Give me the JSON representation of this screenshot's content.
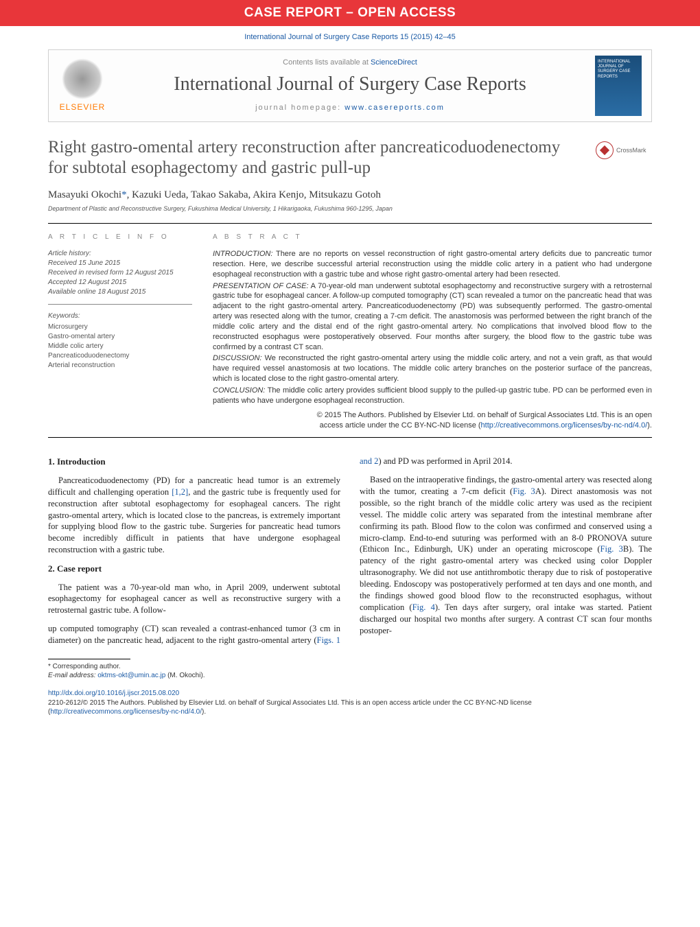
{
  "banner": {
    "text": "CASE REPORT – OPEN ACCESS",
    "bg": "#e8363a",
    "fg": "#ffffff",
    "fontsize": 19
  },
  "citation": "International Journal of Surgery Case Reports 15 (2015) 42–45",
  "contents": {
    "line_prefix": "Contents lists available at ",
    "line_link": "ScienceDirect",
    "journal_title": "International Journal of Surgery Case Reports",
    "homepage_prefix": "journal homepage: ",
    "homepage_link": "www.casereports.com",
    "elsevier_label": "ELSEVIER",
    "cover_lines": "INTERNATIONAL JOURNAL OF SURGERY CASE REPORTS"
  },
  "article": {
    "title": "Right gastro-omental artery reconstruction after pancreaticoduodenectomy for subtotal esophagectomy and gastric pull-up",
    "title_fontsize": 25,
    "title_color": "#585858",
    "crossmark": "CrossMark"
  },
  "authors": {
    "list": "Masayuki Okochi",
    "rest": ", Kazuki Ueda, Takao Sakaba, Akira Kenjo, Mitsukazu Gotoh",
    "corr_mark": "*"
  },
  "affiliation": "Department of Plastic and Reconstructive Surgery, Fukushima Medical University, 1 Hikarigaoka, Fukushima 960-1295, Japan",
  "info": {
    "label": "a r t i c l e   i n f o",
    "history_hd": "Article history:",
    "received": "Received 15 June 2015",
    "revised": "Received in revised form 12 August 2015",
    "accepted": "Accepted 12 August 2015",
    "online": "Available online 18 August 2015",
    "keywords_hd": "Keywords:",
    "keywords": [
      "Microsurgery",
      "Gastro-omental artery",
      "Middle colic artery",
      "Pancreaticoduodenectomy",
      "Arterial reconstruction"
    ]
  },
  "abstract": {
    "label": "a b s t r a c t",
    "intro_hd": "INTRODUCTION:",
    "intro": " There are no reports on vessel reconstruction of right gastro-omental artery deficits due to pancreatic tumor resection. Here, we describe successful arterial reconstruction using the middle colic artery in a patient who had undergone esophageal reconstruction with a gastric tube and whose right gastro-omental artery had been resected.",
    "case_hd": "PRESENTATION OF CASE:",
    "case": " A 70-year-old man underwent subtotal esophagectomy and reconstructive surgery with a retrosternal gastric tube for esophageal cancer. A follow-up computed tomography (CT) scan revealed a tumor on the pancreatic head that was adjacent to the right gastro-omental artery. Pancreaticoduodenectomy (PD) was subsequently performed. The gastro-omental artery was resected along with the tumor, creating a 7-cm deficit. The anastomosis was performed between the right branch of the middle colic artery and the distal end of the right gastro-omental artery. No complications that involved blood flow to the reconstructed esophagus were postoperatively observed. Four months after surgery, the blood flow to the gastric tube was confirmed by a contrast CT scan.",
    "disc_hd": "DISCUSSION:",
    "disc": " We reconstructed the right gastro-omental artery using the middle colic artery, and not a vein graft, as that would have required vessel anastomosis at two locations. The middle colic artery branches on the posterior surface of the pancreas, which is located close to the right gastro-omental artery.",
    "conc_hd": "CONCLUSION:",
    "conc": " The middle colic artery provides sufficient blood supply to the pulled-up gastric tube. PD can be performed even in patients who have undergone esophageal reconstruction.",
    "copyright_line1": "© 2015 The Authors. Published by Elsevier Ltd. on behalf of Surgical Associates Ltd. This is an open",
    "copyright_line2": "access article under the CC BY-NC-ND license (",
    "copyright_link": "http://creativecommons.org/licenses/by-nc-nd/4.0/",
    "copyright_close": ")."
  },
  "body": {
    "h1": "1.  Introduction",
    "p1a": "Pancreaticoduodenectomy (PD) for a pancreatic head tumor is an extremely difficult and challenging operation ",
    "p1_link": "[1,2]",
    "p1b": ", and the gastric tube is frequently used for reconstruction after subtotal esophagectomy for esophageal cancers. The right gastro-omental artery, which is located close to the pancreas, is extremely important for supplying blood flow to the gastric tube. Surgeries for pancreatic head tumors become incredibly difficult in patients that have undergone esophageal reconstruction with a gastric tube.",
    "h2": "2.  Case report",
    "p2": "The patient was a 70-year-old man who, in April 2009, underwent subtotal esophagectomy for esophageal cancer as well as reconstructive surgery with a retrosternal gastric tube. A follow-",
    "p3a": "up computed tomography (CT) scan revealed a contrast-enhanced tumor (3 cm in diameter) on the pancreatic head, adjacent to the right gastro-omental artery (",
    "p3_link1": "Figs. 1 and 2",
    "p3b": ") and PD was performed in April 2014.",
    "p4a": "Based on the intraoperative findings, the gastro-omental artery was resected along with the tumor, creating a 7-cm deficit (",
    "p4_link1": "Fig. 3",
    "p4b": "A). Direct anastomosis was not possible, so the right branch of the middle colic artery was used as the recipient vessel. The middle colic artery was separated from the intestinal membrane after confirming its path. Blood flow to the colon was confirmed and conserved using a micro-clamp. End-to-end suturing was performed with an 8-0 PRONOVA suture (Ethicon Inc., Edinburgh, UK) under an operating microscope (",
    "p4_link2": "Fig. 3",
    "p4c": "B). The patency of the right gastro-omental artery was checked using color Doppler ultrasonography. We did not use antithrombotic therapy due to risk of postoperative bleeding. Endoscopy was postoperatively performed at ten days and one month, and the findings showed good blood flow to the reconstructed esophagus, without complication (",
    "p4_link3": "Fig. 4",
    "p4d": "). Ten days after surgery, oral intake was started. Patient discharged our hospital two months after surgery. A contrast CT scan four months postoper-"
  },
  "footnotes": {
    "corr_label": "* Corresponding author.",
    "email_label": "E-mail address: ",
    "email": "oktms-okt@umin.ac.jp",
    "email_suffix": " (M. Okochi)."
  },
  "doi": {
    "link": "http://dx.doi.org/10.1016/j.ijscr.2015.08.020"
  },
  "footer_license": {
    "text_a": "2210-2612/© 2015 The Authors. Published by Elsevier Ltd. on behalf of Surgical Associates Ltd. This is an open access article under the CC BY-NC-ND license (",
    "link": "http://creativecommons.org/licenses/by-nc-nd/4.0/",
    "text_b": ")."
  },
  "colors": {
    "link": "#1a5aa5",
    "text": "#222222",
    "muted": "#888888"
  },
  "typography": {
    "body_fontsize": 12.5,
    "abstract_fontsize": 11,
    "footnote_fontsize": 10
  }
}
